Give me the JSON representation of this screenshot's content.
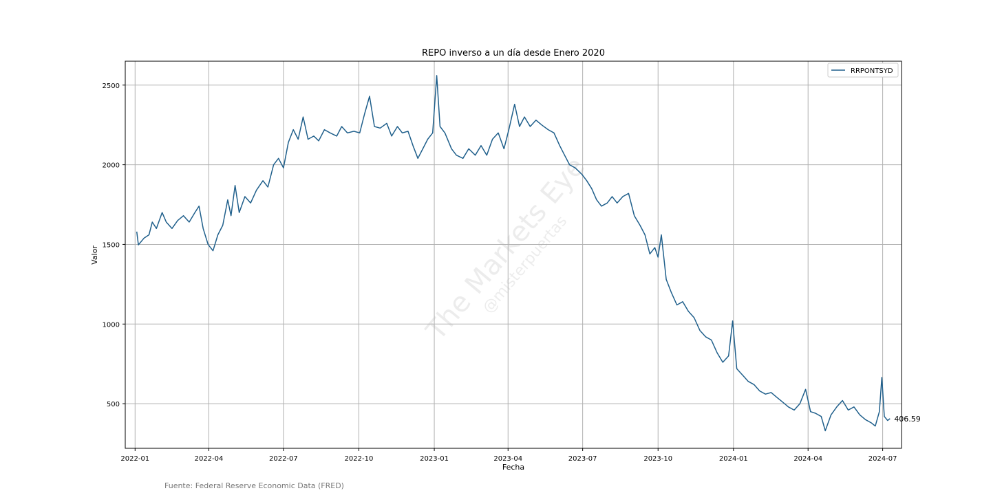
{
  "chart_data": {
    "type": "line",
    "title": "REPO inverso a un día desde Enero 2020",
    "xlabel": "Fecha",
    "ylabel": "Valor",
    "x_range": [
      "2021-12-20",
      "2024-07-24"
    ],
    "ylim": [
      220,
      2650
    ],
    "x_ticks": [
      "2022-01",
      "2022-04",
      "2022-07",
      "2022-10",
      "2023-01",
      "2023-04",
      "2023-07",
      "2023-10",
      "2024-01",
      "2024-04",
      "2024-07"
    ],
    "y_ticks": [
      500,
      1000,
      1500,
      2000,
      2500
    ],
    "grid": true,
    "legend_position": "top-right",
    "line_color": "#1f5f8b",
    "annotation": {
      "date": "2024-07-10",
      "value": 406.59,
      "text": "406.59"
    },
    "series": [
      {
        "name": "RRPONTSYD",
        "points": [
          [
            "2022-01-03",
            1580
          ],
          [
            "2022-01-05",
            1497
          ],
          [
            "2022-01-12",
            1540
          ],
          [
            "2022-01-18",
            1560
          ],
          [
            "2022-01-22",
            1640
          ],
          [
            "2022-01-27",
            1600
          ],
          [
            "2022-02-03",
            1700
          ],
          [
            "2022-02-08",
            1640
          ],
          [
            "2022-02-15",
            1600
          ],
          [
            "2022-02-22",
            1650
          ],
          [
            "2022-03-01",
            1680
          ],
          [
            "2022-03-08",
            1640
          ],
          [
            "2022-03-15",
            1700
          ],
          [
            "2022-03-20",
            1740
          ],
          [
            "2022-03-25",
            1600
          ],
          [
            "2022-03-31",
            1500
          ],
          [
            "2022-04-06",
            1460
          ],
          [
            "2022-04-12",
            1560
          ],
          [
            "2022-04-18",
            1620
          ],
          [
            "2022-04-24",
            1780
          ],
          [
            "2022-04-28",
            1680
          ],
          [
            "2022-05-03",
            1870
          ],
          [
            "2022-05-08",
            1700
          ],
          [
            "2022-05-15",
            1800
          ],
          [
            "2022-05-22",
            1760
          ],
          [
            "2022-05-29",
            1840
          ],
          [
            "2022-06-06",
            1900
          ],
          [
            "2022-06-12",
            1860
          ],
          [
            "2022-06-19",
            2000
          ],
          [
            "2022-06-25",
            2040
          ],
          [
            "2022-07-01",
            1980
          ],
          [
            "2022-07-07",
            2140
          ],
          [
            "2022-07-13",
            2220
          ],
          [
            "2022-07-19",
            2160
          ],
          [
            "2022-07-25",
            2300
          ],
          [
            "2022-07-31",
            2160
          ],
          [
            "2022-08-07",
            2180
          ],
          [
            "2022-08-13",
            2150
          ],
          [
            "2022-08-20",
            2220
          ],
          [
            "2022-08-27",
            2200
          ],
          [
            "2022-09-04",
            2180
          ],
          [
            "2022-09-10",
            2240
          ],
          [
            "2022-09-17",
            2200
          ],
          [
            "2022-09-25",
            2210
          ],
          [
            "2022-10-02",
            2200
          ],
          [
            "2022-10-08",
            2320
          ],
          [
            "2022-10-14",
            2430
          ],
          [
            "2022-10-20",
            2240
          ],
          [
            "2022-10-27",
            2230
          ],
          [
            "2022-11-04",
            2260
          ],
          [
            "2022-11-10",
            2180
          ],
          [
            "2022-11-17",
            2240
          ],
          [
            "2022-11-23",
            2200
          ],
          [
            "2022-11-30",
            2210
          ],
          [
            "2022-12-06",
            2120
          ],
          [
            "2022-12-12",
            2040
          ],
          [
            "2022-12-18",
            2100
          ],
          [
            "2022-12-24",
            2160
          ],
          [
            "2022-12-30",
            2200
          ],
          [
            "2023-01-04",
            2560
          ],
          [
            "2023-01-08",
            2240
          ],
          [
            "2023-01-14",
            2200
          ],
          [
            "2023-01-22",
            2100
          ],
          [
            "2023-01-28",
            2060
          ],
          [
            "2023-02-05",
            2040
          ],
          [
            "2023-02-12",
            2100
          ],
          [
            "2023-02-20",
            2060
          ],
          [
            "2023-02-27",
            2120
          ],
          [
            "2023-03-06",
            2060
          ],
          [
            "2023-03-13",
            2160
          ],
          [
            "2023-03-20",
            2200
          ],
          [
            "2023-03-27",
            2100
          ],
          [
            "2023-04-02",
            2220
          ],
          [
            "2023-04-09",
            2380
          ],
          [
            "2023-04-15",
            2240
          ],
          [
            "2023-04-21",
            2300
          ],
          [
            "2023-04-28",
            2240
          ],
          [
            "2023-05-05",
            2280
          ],
          [
            "2023-05-12",
            2250
          ],
          [
            "2023-05-20",
            2220
          ],
          [
            "2023-05-27",
            2200
          ],
          [
            "2023-06-03",
            2120
          ],
          [
            "2023-06-09",
            2060
          ],
          [
            "2023-06-15",
            2000
          ],
          [
            "2023-06-22",
            1980
          ],
          [
            "2023-06-30",
            1940
          ],
          [
            "2023-07-06",
            1900
          ],
          [
            "2023-07-12",
            1850
          ],
          [
            "2023-07-18",
            1780
          ],
          [
            "2023-07-24",
            1740
          ],
          [
            "2023-07-31",
            1760
          ],
          [
            "2023-08-06",
            1800
          ],
          [
            "2023-08-12",
            1760
          ],
          [
            "2023-08-19",
            1800
          ],
          [
            "2023-08-26",
            1820
          ],
          [
            "2023-09-02",
            1680
          ],
          [
            "2023-09-09",
            1620
          ],
          [
            "2023-09-15",
            1560
          ],
          [
            "2023-09-21",
            1440
          ],
          [
            "2023-09-27",
            1480
          ],
          [
            "2023-10-01",
            1420
          ],
          [
            "2023-10-05",
            1560
          ],
          [
            "2023-10-11",
            1280
          ],
          [
            "2023-10-17",
            1200
          ],
          [
            "2023-10-24",
            1120
          ],
          [
            "2023-10-31",
            1140
          ],
          [
            "2023-11-07",
            1080
          ],
          [
            "2023-11-14",
            1040
          ],
          [
            "2023-11-21",
            960
          ],
          [
            "2023-11-28",
            920
          ],
          [
            "2023-12-05",
            900
          ],
          [
            "2023-12-12",
            820
          ],
          [
            "2023-12-19",
            760
          ],
          [
            "2023-12-26",
            800
          ],
          [
            "2023-12-31",
            1020
          ],
          [
            "2024-01-05",
            720
          ],
          [
            "2024-01-12",
            680
          ],
          [
            "2024-01-19",
            640
          ],
          [
            "2024-01-26",
            620
          ],
          [
            "2024-02-02",
            580
          ],
          [
            "2024-02-09",
            560
          ],
          [
            "2024-02-16",
            570
          ],
          [
            "2024-02-23",
            540
          ],
          [
            "2024-03-01",
            510
          ],
          [
            "2024-03-08",
            480
          ],
          [
            "2024-03-15",
            460
          ],
          [
            "2024-03-22",
            500
          ],
          [
            "2024-03-29",
            590
          ],
          [
            "2024-04-04",
            450
          ],
          [
            "2024-04-10",
            440
          ],
          [
            "2024-04-17",
            420
          ],
          [
            "2024-04-22",
            330
          ],
          [
            "2024-04-29",
            430
          ],
          [
            "2024-05-06",
            480
          ],
          [
            "2024-05-13",
            520
          ],
          [
            "2024-05-20",
            460
          ],
          [
            "2024-05-27",
            480
          ],
          [
            "2024-06-03",
            430
          ],
          [
            "2024-06-10",
            400
          ],
          [
            "2024-06-17",
            380
          ],
          [
            "2024-06-22",
            360
          ],
          [
            "2024-06-27",
            450
          ],
          [
            "2024-06-30",
            665
          ],
          [
            "2024-07-03",
            420
          ],
          [
            "2024-07-07",
            395
          ],
          [
            "2024-07-10",
            406.59
          ]
        ]
      }
    ]
  },
  "source_note": "Fuente: Federal Reserve Economic Data (FRED)",
  "watermark": {
    "main": "The Markets Eye",
    "sub": "@misterpuertas"
  }
}
